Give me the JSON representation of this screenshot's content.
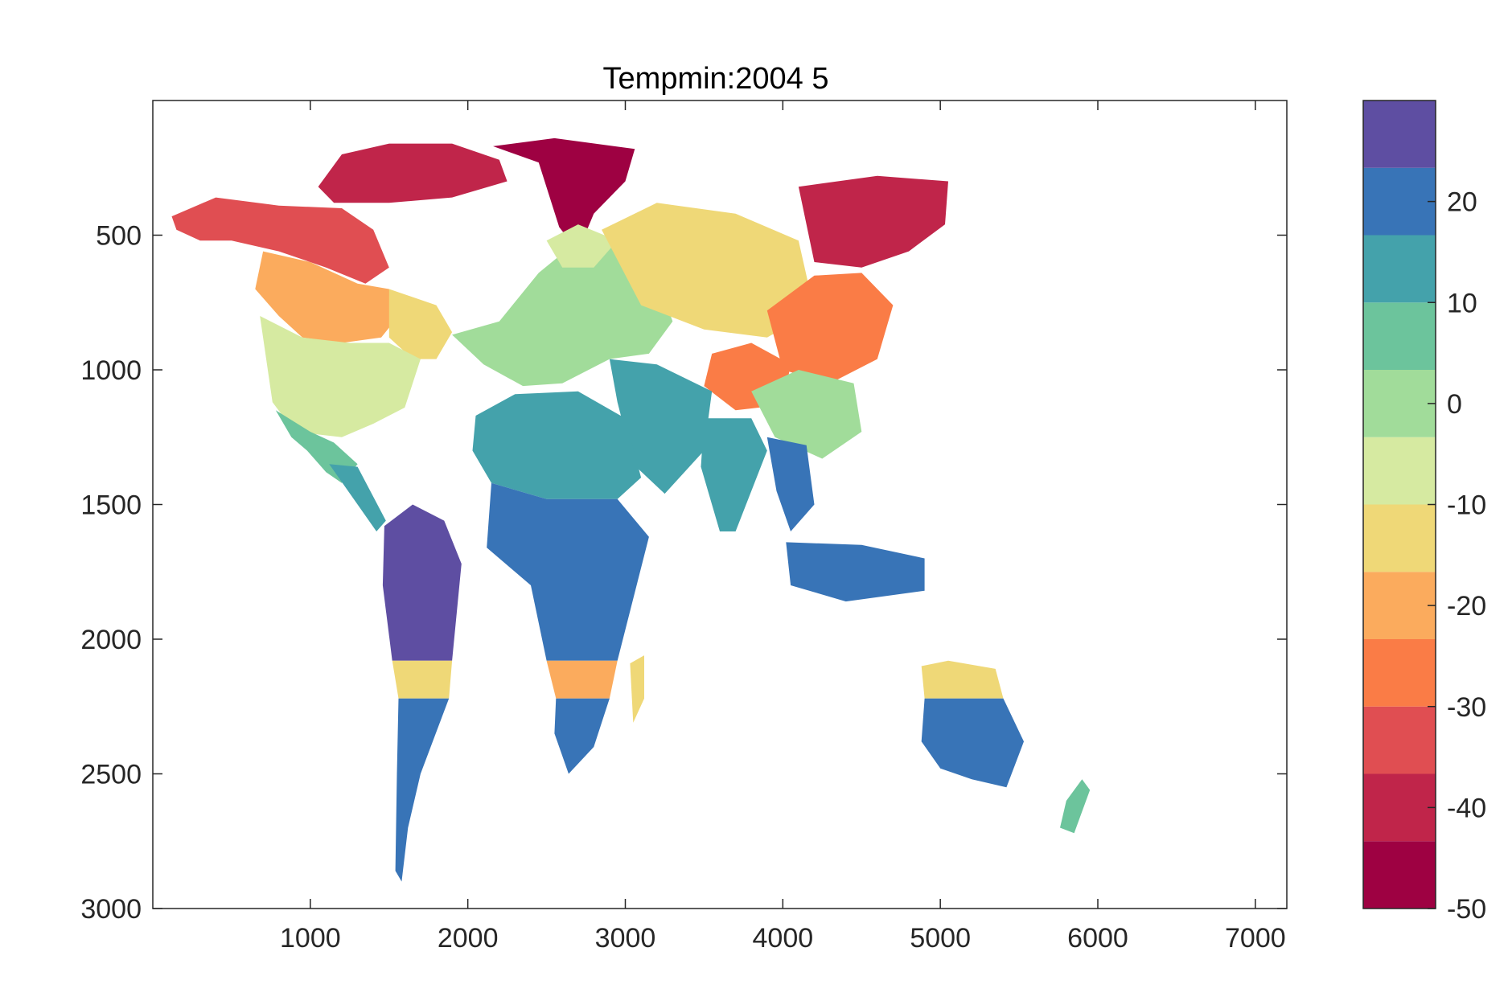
{
  "chart_data": {
    "type": "heatmap",
    "title": "Tempmin:2004  5",
    "xlabel": "",
    "ylabel": "",
    "xlim": [
      0,
      7200
    ],
    "ylim": [
      0,
      3000
    ],
    "y_reversed": true,
    "x_ticks": [
      1000,
      2000,
      3000,
      4000,
      5000,
      6000,
      7000
    ],
    "x_tick_labels": [
      "1000",
      "2000",
      "3000",
      "4000",
      "5000",
      "6000",
      "7000"
    ],
    "y_ticks": [
      500,
      1000,
      1500,
      2000,
      2500,
      3000
    ],
    "y_tick_labels": [
      "500",
      "1000",
      "1500",
      "2000",
      "2500",
      "3000"
    ],
    "grid": false,
    "colorbar": {
      "location": "right",
      "range": [
        -50,
        30
      ],
      "ticks": [
        -50,
        -40,
        -30,
        -20,
        -10,
        0,
        10,
        20
      ],
      "tick_labels": [
        "-50",
        "-40",
        "-30",
        "-20",
        "-10",
        "0",
        "10",
        "20"
      ],
      "band_colors": [
        "#9e0142",
        "#c0254a",
        "#e04e52",
        "#fa7c46",
        "#fbab5d",
        "#efd877",
        "#d6eaa1",
        "#a1dc9a",
        "#6cc49c",
        "#44a2ab",
        "#3874b7",
        "#5e4ea2"
      ]
    },
    "colors": {
      "ocean": "#ffffff",
      "axis": "#262626"
    },
    "regions": [
      {
        "name": "Greenland",
        "value": -45,
        "points": [
          [
            2160,
            170
          ],
          [
            2550,
            140
          ],
          [
            3060,
            180
          ],
          [
            3000,
            300
          ],
          [
            2800,
            420
          ],
          [
            2700,
            560
          ],
          [
            2580,
            470
          ],
          [
            2450,
            230
          ]
        ]
      },
      {
        "name": "Arctic Archipelago",
        "value": -38,
        "points": [
          [
            1050,
            320
          ],
          [
            1200,
            200
          ],
          [
            1500,
            160
          ],
          [
            1900,
            160
          ],
          [
            2200,
            220
          ],
          [
            2250,
            300
          ],
          [
            1900,
            360
          ],
          [
            1500,
            380
          ],
          [
            1150,
            380
          ]
        ]
      },
      {
        "name": "Alaska and Northern Canada",
        "value": -32,
        "points": [
          [
            120,
            430
          ],
          [
            400,
            360
          ],
          [
            800,
            390
          ],
          [
            1200,
            400
          ],
          [
            1400,
            480
          ],
          [
            1500,
            620
          ],
          [
            1350,
            680
          ],
          [
            1100,
            620
          ],
          [
            800,
            560
          ],
          [
            500,
            520
          ],
          [
            300,
            520
          ],
          [
            150,
            480
          ]
        ]
      },
      {
        "name": "Canada",
        "value": -20,
        "points": [
          [
            700,
            560
          ],
          [
            1000,
            600
          ],
          [
            1300,
            680
          ],
          [
            1500,
            700
          ],
          [
            1560,
            800
          ],
          [
            1450,
            880
          ],
          [
            1200,
            900
          ],
          [
            950,
            880
          ],
          [
            800,
            800
          ],
          [
            650,
            700
          ]
        ]
      },
      {
        "name": "Eastern Canada",
        "value": -15,
        "points": [
          [
            1500,
            700
          ],
          [
            1800,
            760
          ],
          [
            1900,
            860
          ],
          [
            1800,
            960
          ],
          [
            1650,
            960
          ],
          [
            1500,
            880
          ]
        ]
      },
      {
        "name": "United States",
        "value": -5,
        "points": [
          [
            680,
            800
          ],
          [
            950,
            880
          ],
          [
            1250,
            900
          ],
          [
            1500,
            900
          ],
          [
            1700,
            960
          ],
          [
            1600,
            1140
          ],
          [
            1400,
            1200
          ],
          [
            1200,
            1250
          ],
          [
            900,
            1230
          ],
          [
            760,
            1120
          ]
        ]
      },
      {
        "name": "Mexico",
        "value": 5,
        "points": [
          [
            780,
            1150
          ],
          [
            1000,
            1230
          ],
          [
            1150,
            1270
          ],
          [
            1300,
            1350
          ],
          [
            1200,
            1420
          ],
          [
            1100,
            1380
          ],
          [
            980,
            1300
          ],
          [
            880,
            1250
          ]
        ]
      },
      {
        "name": "Central America",
        "value": 14,
        "points": [
          [
            1120,
            1350
          ],
          [
            1300,
            1360
          ],
          [
            1480,
            1560
          ],
          [
            1420,
            1600
          ],
          [
            1300,
            1500
          ]
        ]
      },
      {
        "name": "South America North",
        "value": 24,
        "points": [
          [
            1470,
            1580
          ],
          [
            1650,
            1500
          ],
          [
            1850,
            1560
          ],
          [
            1960,
            1720
          ],
          [
            1900,
            2080
          ],
          [
            1520,
            2080
          ],
          [
            1460,
            1800
          ]
        ]
      },
      {
        "name": "South America Band",
        "value": -12,
        "points": [
          [
            1520,
            2080
          ],
          [
            1900,
            2080
          ],
          [
            1880,
            2220
          ],
          [
            1560,
            2220
          ]
        ]
      },
      {
        "name": "South America South",
        "value": 18,
        "points": [
          [
            1560,
            2220
          ],
          [
            1880,
            2220
          ],
          [
            1700,
            2500
          ],
          [
            1620,
            2700
          ],
          [
            1580,
            2900
          ],
          [
            1540,
            2860
          ],
          [
            1550,
            2500
          ]
        ]
      },
      {
        "name": "Europe",
        "value": 2,
        "points": [
          [
            1900,
            870
          ],
          [
            2200,
            820
          ],
          [
            2450,
            640
          ],
          [
            2700,
            520
          ],
          [
            3000,
            540
          ],
          [
            3200,
            650
          ],
          [
            3300,
            820
          ],
          [
            3150,
            940
          ],
          [
            2900,
            960
          ],
          [
            2600,
            1050
          ],
          [
            2350,
            1060
          ],
          [
            2100,
            980
          ]
        ]
      },
      {
        "name": "Scandinavia",
        "value": -8,
        "points": [
          [
            2500,
            520
          ],
          [
            2700,
            460
          ],
          [
            2950,
            520
          ],
          [
            2800,
            620
          ],
          [
            2600,
            620
          ]
        ]
      },
      {
        "name": "Siberia West",
        "value": -12,
        "points": [
          [
            2850,
            480
          ],
          [
            3200,
            380
          ],
          [
            3700,
            420
          ],
          [
            4100,
            520
          ],
          [
            4200,
            780
          ],
          [
            3900,
            880
          ],
          [
            3500,
            850
          ],
          [
            3100,
            760
          ]
        ]
      },
      {
        "name": "Siberia East",
        "value": -38,
        "points": [
          [
            4100,
            320
          ],
          [
            4600,
            280
          ],
          [
            5050,
            300
          ],
          [
            5030,
            460
          ],
          [
            4800,
            560
          ],
          [
            4500,
            620
          ],
          [
            4200,
            600
          ]
        ]
      },
      {
        "name": "East Asia",
        "value": -25,
        "points": [
          [
            3900,
            780
          ],
          [
            4200,
            650
          ],
          [
            4500,
            640
          ],
          [
            4700,
            760
          ],
          [
            4600,
            960
          ],
          [
            4300,
            1050
          ],
          [
            4000,
            1000
          ]
        ]
      },
      {
        "name": "Tibet",
        "value": -28,
        "points": [
          [
            3550,
            940
          ],
          [
            3800,
            900
          ],
          [
            4050,
            980
          ],
          [
            4000,
            1130
          ],
          [
            3700,
            1150
          ],
          [
            3500,
            1060
          ]
        ]
      },
      {
        "name": "China South",
        "value": -2,
        "points": [
          [
            3800,
            1080
          ],
          [
            4100,
            1000
          ],
          [
            4450,
            1050
          ],
          [
            4500,
            1230
          ],
          [
            4250,
            1330
          ],
          [
            3950,
            1250
          ]
        ]
      },
      {
        "name": "Middle East",
        "value": 12,
        "points": [
          [
            2900,
            960
          ],
          [
            3200,
            980
          ],
          [
            3550,
            1080
          ],
          [
            3500,
            1300
          ],
          [
            3250,
            1460
          ],
          [
            3050,
            1350
          ],
          [
            2950,
            1120
          ]
        ]
      },
      {
        "name": "India",
        "value": 16,
        "points": [
          [
            3500,
            1180
          ],
          [
            3800,
            1180
          ],
          [
            3900,
            1300
          ],
          [
            3700,
            1600
          ],
          [
            3600,
            1600
          ],
          [
            3480,
            1360
          ]
        ]
      },
      {
        "name": "Southeast Asia",
        "value": 20,
        "points": [
          [
            3900,
            1250
          ],
          [
            4150,
            1280
          ],
          [
            4200,
            1500
          ],
          [
            4050,
            1600
          ],
          [
            3960,
            1450
          ]
        ]
      },
      {
        "name": "Indonesia",
        "value": 22,
        "points": [
          [
            4020,
            1640
          ],
          [
            4500,
            1650
          ],
          [
            4900,
            1700
          ],
          [
            4900,
            1820
          ],
          [
            4400,
            1860
          ],
          [
            4050,
            1800
          ]
        ]
      },
      {
        "name": "North Africa",
        "value": 10,
        "points": [
          [
            2050,
            1170
          ],
          [
            2300,
            1090
          ],
          [
            2700,
            1080
          ],
          [
            3000,
            1180
          ],
          [
            3100,
            1400
          ],
          [
            2950,
            1480
          ],
          [
            2500,
            1480
          ],
          [
            2150,
            1420
          ],
          [
            2030,
            1300
          ]
        ]
      },
      {
        "name": "Central Africa",
        "value": 22,
        "points": [
          [
            2150,
            1420
          ],
          [
            2500,
            1480
          ],
          [
            2950,
            1480
          ],
          [
            3150,
            1620
          ],
          [
            2950,
            2080
          ],
          [
            2500,
            2080
          ],
          [
            2400,
            1800
          ],
          [
            2120,
            1660
          ]
        ]
      },
      {
        "name": "Africa Band",
        "value": -18,
        "points": [
          [
            2500,
            2080
          ],
          [
            2950,
            2080
          ],
          [
            2900,
            2220
          ],
          [
            2560,
            2220
          ]
        ]
      },
      {
        "name": "Southern Africa",
        "value": 18,
        "points": [
          [
            2560,
            2220
          ],
          [
            2900,
            2220
          ],
          [
            2800,
            2400
          ],
          [
            2640,
            2500
          ],
          [
            2550,
            2350
          ]
        ]
      },
      {
        "name": "Madagascar",
        "value": -15,
        "points": [
          [
            3030,
            2090
          ],
          [
            3120,
            2060
          ],
          [
            3120,
            2220
          ],
          [
            3050,
            2310
          ]
        ]
      },
      {
        "name": "Australia North",
        "value": -12,
        "points": [
          [
            4880,
            2100
          ],
          [
            5050,
            2080
          ],
          [
            5350,
            2110
          ],
          [
            5400,
            2220
          ],
          [
            4900,
            2220
          ]
        ]
      },
      {
        "name": "Australia South",
        "value": 22,
        "points": [
          [
            4900,
            2220
          ],
          [
            5400,
            2220
          ],
          [
            5530,
            2380
          ],
          [
            5420,
            2550
          ],
          [
            5200,
            2520
          ],
          [
            5000,
            2480
          ],
          [
            4880,
            2380
          ]
        ]
      },
      {
        "name": "New Zealand",
        "value": 8,
        "points": [
          [
            5800,
            2600
          ],
          [
            5900,
            2520
          ],
          [
            5950,
            2560
          ],
          [
            5850,
            2720
          ],
          [
            5760,
            2700
          ]
        ]
      }
    ]
  }
}
